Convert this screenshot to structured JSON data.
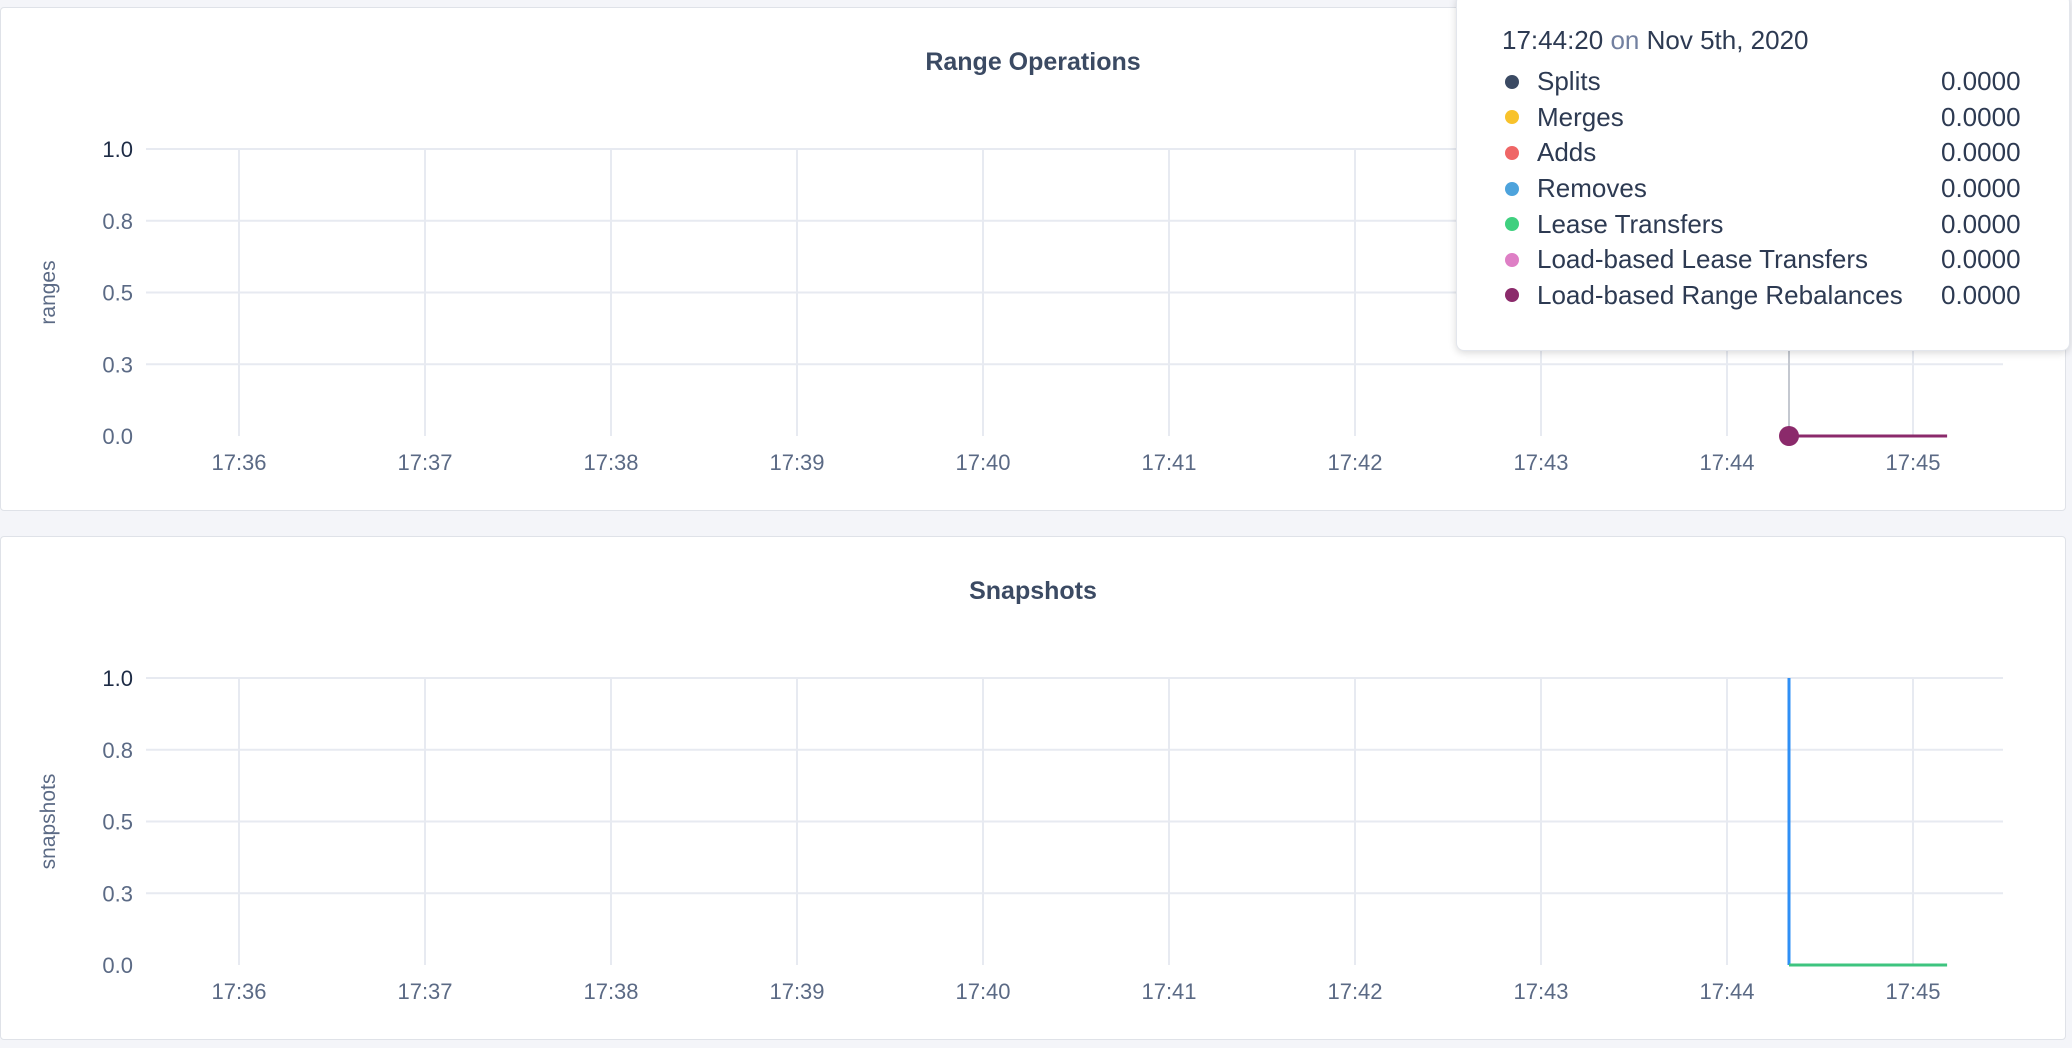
{
  "chart_data": [
    {
      "type": "line",
      "title": "Range Operations",
      "ylabel": "ranges",
      "ylim": [
        0,
        1
      ],
      "yticks": [
        {
          "value": 1,
          "label": "1.0"
        },
        {
          "value": 0.75,
          "label": "0.8"
        },
        {
          "value": 0.5,
          "label": "0.5"
        },
        {
          "value": 0.25,
          "label": "0.3"
        },
        {
          "value": 0,
          "label": "0.0"
        }
      ],
      "xticks": [
        "17:36",
        "17:37",
        "17:38",
        "17:39",
        "17:40",
        "17:41",
        "17:42",
        "17:43",
        "17:44",
        "17:45"
      ],
      "grid": true,
      "series": [
        {
          "color": "#8b2a6b",
          "points": [
            [
              "17:44:20",
              0
            ],
            [
              "17:45:11",
              0
            ]
          ]
        }
      ],
      "hover": {
        "time": "17:44:20",
        "marker_color": "#8b2a6b"
      }
    },
    {
      "type": "line",
      "title": "Snapshots",
      "ylabel": "snapshots",
      "ylim": [
        0,
        1
      ],
      "yticks": [
        {
          "value": 1,
          "label": "1.0"
        },
        {
          "value": 0.75,
          "label": "0.8"
        },
        {
          "value": 0.5,
          "label": "0.5"
        },
        {
          "value": 0.25,
          "label": "0.3"
        },
        {
          "value": 0,
          "label": "0.0"
        }
      ],
      "xticks": [
        "17:36",
        "17:37",
        "17:38",
        "17:39",
        "17:40",
        "17:41",
        "17:42",
        "17:43",
        "17:44",
        "17:45"
      ],
      "grid": true,
      "series": [
        {
          "color": "#2f8ff5",
          "points": [
            [
              "17:44:20",
              1
            ],
            [
              "17:44:20",
              0
            ]
          ]
        },
        {
          "color": "#3ec47f",
          "points": [
            [
              "17:44:20",
              0
            ],
            [
              "17:45:11",
              0
            ]
          ]
        }
      ]
    }
  ],
  "tooltip": {
    "time": "17:44:20",
    "on": "on",
    "date": "Nov 5th, 2020",
    "rows": [
      {
        "label": "Splits",
        "value": "0.0000",
        "color": "#3b4a63"
      },
      {
        "label": "Merges",
        "value": "0.0000",
        "color": "#f8c22b"
      },
      {
        "label": "Adds",
        "value": "0.0000",
        "color": "#ef6666"
      },
      {
        "label": "Removes",
        "value": "0.0000",
        "color": "#4da3dc"
      },
      {
        "label": "Lease Transfers",
        "value": "0.0000",
        "color": "#3fd07f"
      },
      {
        "label": "Load-based Lease Transfers",
        "value": "0.0000",
        "color": "#de7fc5"
      },
      {
        "label": "Load-based Range Rebalances",
        "value": "0.0000",
        "color": "#8b2a6b"
      }
    ]
  }
}
